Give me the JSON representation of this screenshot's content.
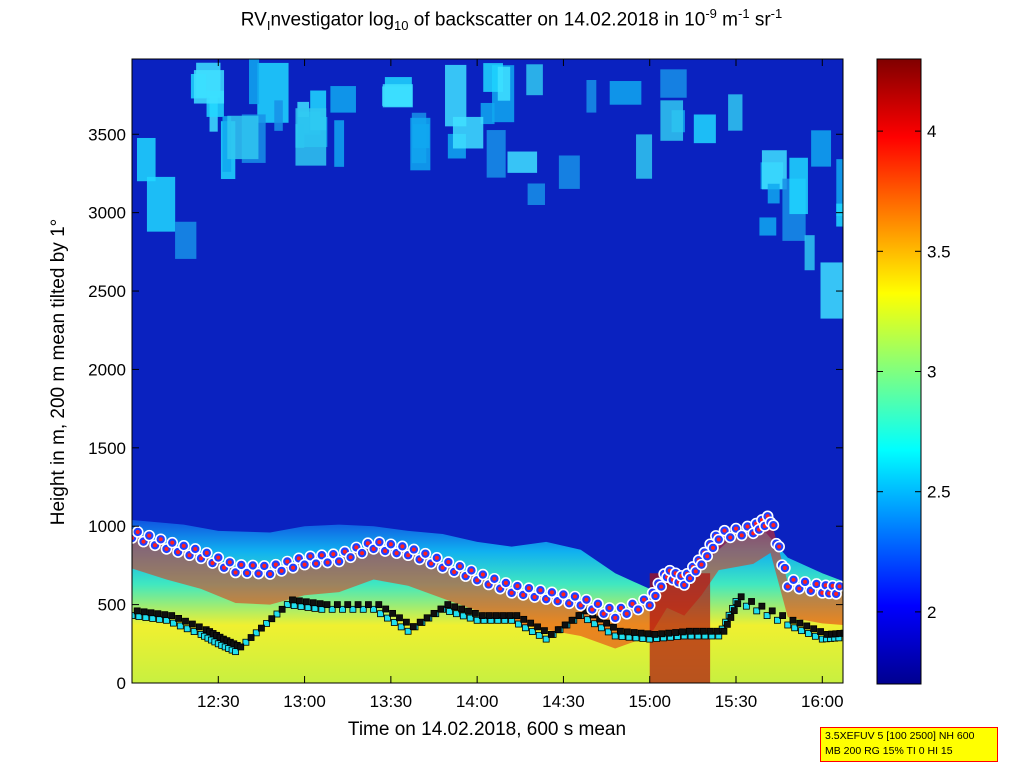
{
  "chart_data": {
    "type": "heatmap",
    "title": {
      "prefix": "RV",
      "sub_i": "I",
      "text1": "nvestigator log",
      "sub_10": "10",
      "text2": " of backscatter on 14.02.2018 in 10",
      "sup_exp": "-9",
      "text3": " m",
      "sup_m": "-1",
      "text4": " sr",
      "sup_sr": "-1"
    },
    "xlabel": "Time on 14.02.2018, 600 s mean",
    "ylabel": "Height in m, 200 m mean tilted by 1°",
    "x_ticks": [
      "12:30",
      "13:00",
      "13:30",
      "14:00",
      "14:30",
      "15:00",
      "15:30",
      "16:00"
    ],
    "x_tick_hours": [
      12.5,
      13.0,
      13.5,
      14.0,
      14.5,
      15.0,
      15.5,
      16.0
    ],
    "xlim_hours": [
      12.0,
      16.12
    ],
    "y_ticks": [
      0,
      500,
      1000,
      1500,
      2000,
      2500,
      3000,
      3500
    ],
    "ylim": [
      0,
      3980
    ],
    "colorbar": {
      "ticks": [
        2,
        2.5,
        3,
        3.5,
        4
      ],
      "tick_labels": [
        "2",
        "2.5",
        "3",
        "3.5",
        "4"
      ],
      "range": [
        1.7,
        4.3
      ],
      "colormap": "jet"
    },
    "boundary_layer_top": [
      [
        12.0,
        1040
      ],
      [
        12.3,
        1010
      ],
      [
        12.5,
        970
      ],
      [
        12.8,
        960
      ],
      [
        13.0,
        1000
      ],
      [
        13.2,
        1010
      ],
      [
        13.4,
        1000
      ],
      [
        13.6,
        970
      ],
      [
        13.8,
        950
      ],
      [
        14.0,
        900
      ],
      [
        14.2,
        870
      ],
      [
        14.4,
        900
      ],
      [
        14.6,
        850
      ],
      [
        14.8,
        700
      ],
      [
        15.0,
        600
      ],
      [
        15.2,
        650
      ],
      [
        15.4,
        850
      ],
      [
        15.6,
        1050
      ],
      [
        15.8,
        800
      ],
      [
        16.0,
        700
      ],
      [
        16.12,
        650
      ]
    ],
    "cloud_layer": [
      [
        12.0,
        950
      ],
      [
        12.2,
        880
      ],
      [
        12.4,
        820
      ],
      [
        12.6,
        730
      ],
      [
        12.8,
        720
      ],
      [
        13.0,
        780
      ],
      [
        13.2,
        800
      ],
      [
        13.4,
        880
      ],
      [
        13.6,
        840
      ],
      [
        13.8,
        760
      ],
      [
        14.0,
        680
      ],
      [
        14.2,
        600
      ],
      [
        14.4,
        560
      ],
      [
        14.6,
        520
      ],
      [
        14.8,
        440
      ],
      [
        15.0,
        520
      ],
      [
        15.1,
        700
      ],
      [
        15.2,
        650
      ],
      [
        15.3,
        780
      ],
      [
        15.4,
        940
      ],
      [
        15.6,
        980
      ],
      [
        15.7,
        1050
      ],
      [
        15.8,
        640
      ],
      [
        16.0,
        600
      ],
      [
        16.12,
        590
      ]
    ],
    "lower_layer": [
      [
        12.0,
        430
      ],
      [
        12.2,
        400
      ],
      [
        12.4,
        310
      ],
      [
        12.5,
        250
      ],
      [
        12.6,
        200
      ],
      [
        12.9,
        500
      ],
      [
        13.1,
        470
      ],
      [
        13.4,
        470
      ],
      [
        13.6,
        330
      ],
      [
        13.8,
        470
      ],
      [
        14.0,
        400
      ],
      [
        14.2,
        400
      ],
      [
        14.4,
        280
      ],
      [
        14.6,
        430
      ],
      [
        14.8,
        300
      ],
      [
        15.0,
        280
      ],
      [
        15.2,
        300
      ],
      [
        15.4,
        300
      ],
      [
        15.5,
        520
      ],
      [
        15.8,
        370
      ],
      [
        16.0,
        280
      ],
      [
        16.12,
        290
      ]
    ],
    "legend_info": {
      "line1": "3.5XEFUV 5 [100 2500] NH 600",
      "line2": "MB 200 RG 15% TI 0 HI 15"
    }
  }
}
